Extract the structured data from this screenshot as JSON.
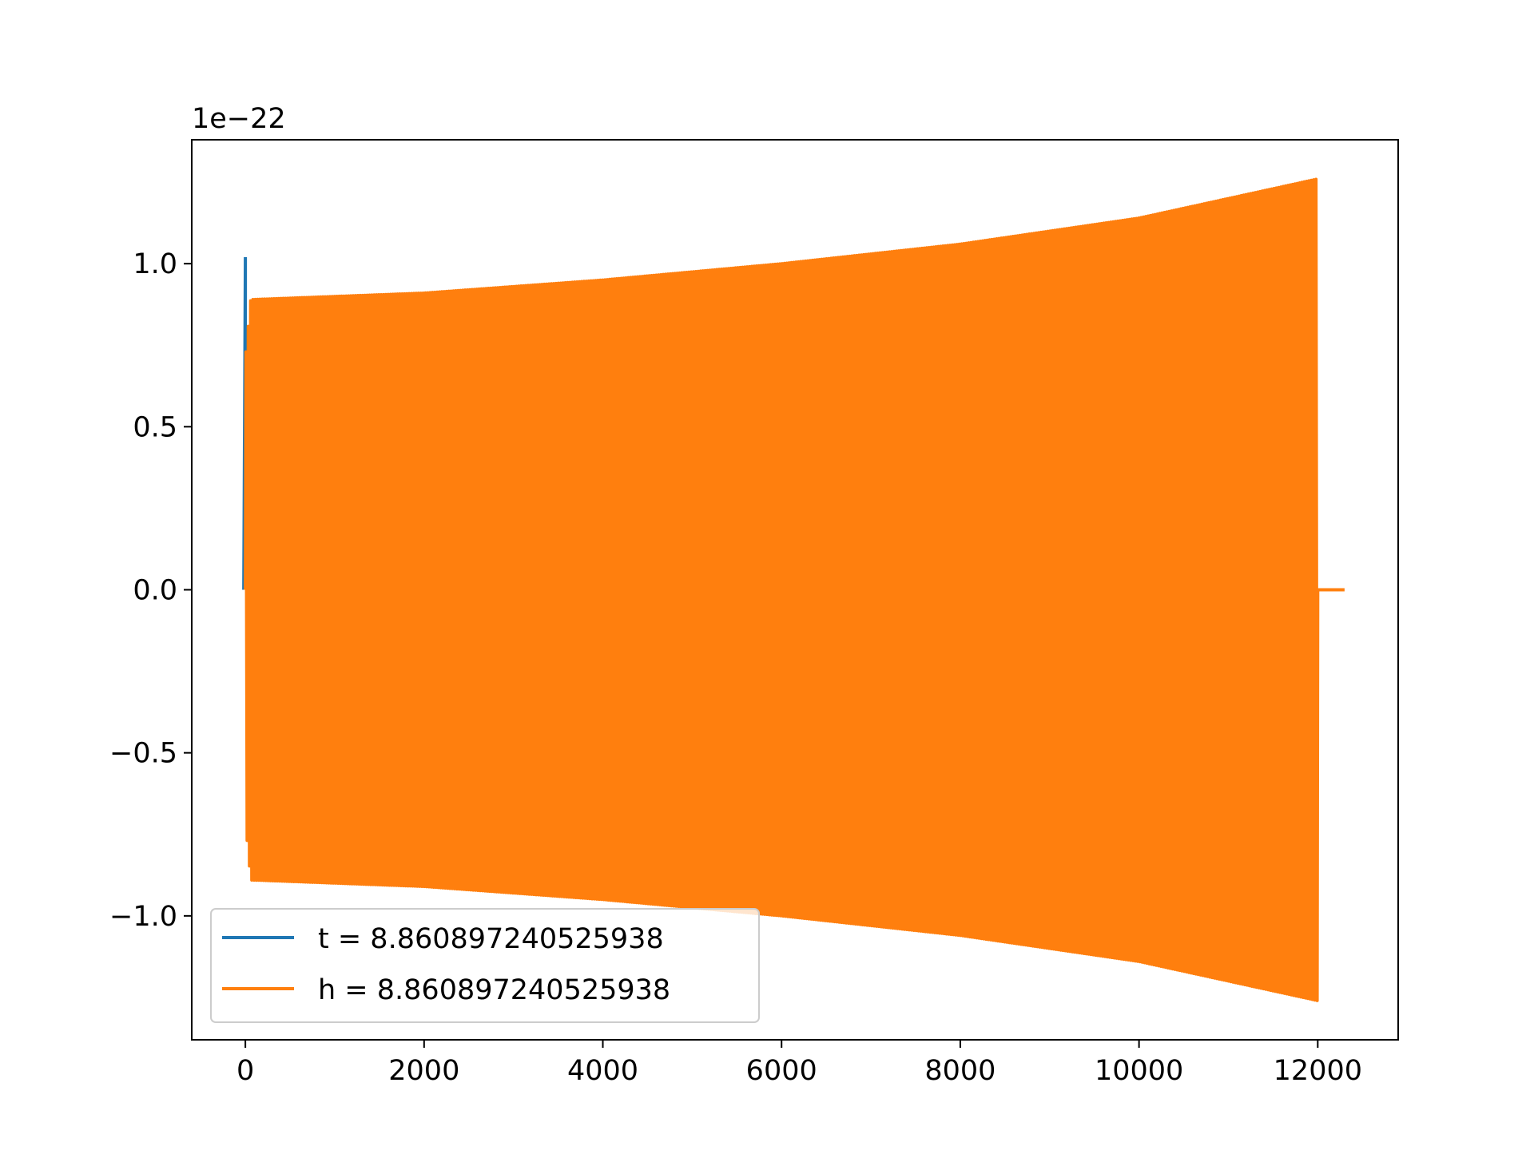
{
  "chart_data": {
    "type": "line",
    "title": "",
    "xlabel": "",
    "ylabel": "",
    "y_offset_label": "1e−22",
    "xlim": [
      -600,
      12900
    ],
    "ylim": [
      -1.38,
      1.38
    ],
    "x_ticks": [
      0,
      2000,
      4000,
      6000,
      8000,
      10000,
      12000
    ],
    "x_tick_labels": [
      "0",
      "2000",
      "4000",
      "6000",
      "8000",
      "10000",
      "12000"
    ],
    "y_ticks": [
      1.0,
      0.5,
      0.0,
      -0.5,
      -1.0
    ],
    "y_tick_labels": [
      "1.0",
      "0.5",
      "0.0",
      "−0.5",
      "−1.0"
    ],
    "grid": false,
    "legend_position": "lower-left",
    "series": [
      {
        "name": "t = 8.860897240525938",
        "color": "#1f77b4",
        "x": [
          0,
          0,
          0,
          0
        ],
        "values": [
          0,
          1.02,
          0.72,
          0.72
        ]
      },
      {
        "name": "h = 8.860897240525938",
        "color": "#ff7f0e",
        "kind": "chirp",
        "x_start": 0,
        "x_end": 12000,
        "envelope_x": [
          0,
          60,
          2000,
          4000,
          6000,
          8000,
          10000,
          12000
        ],
        "envelope_amplitude": [
          0.71,
          0.89,
          0.91,
          0.95,
          1.0,
          1.06,
          1.14,
          1.26
        ],
        "tail_x": [
          12000,
          12300
        ],
        "tail_values": [
          0,
          0
        ]
      }
    ]
  }
}
